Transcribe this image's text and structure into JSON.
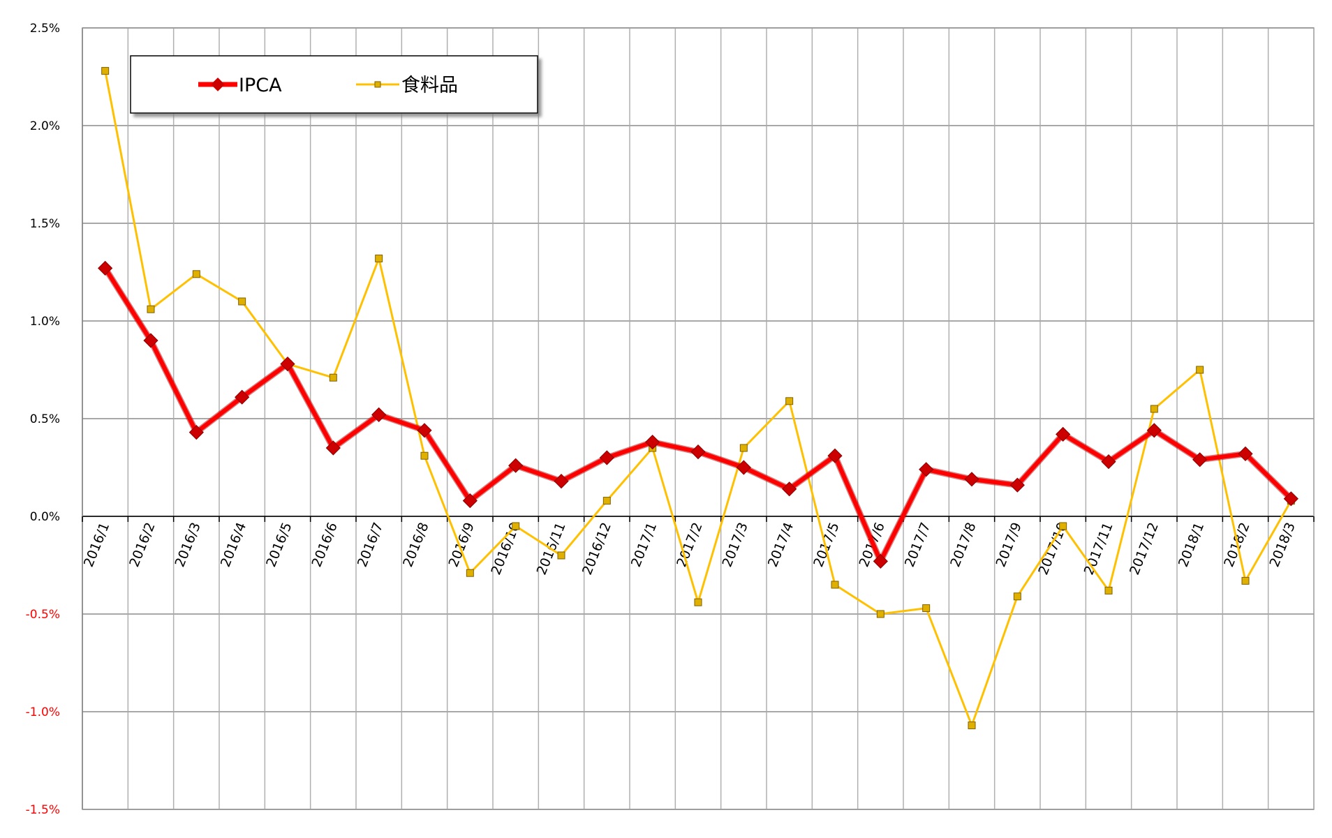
{
  "chart_data": {
    "type": "line",
    "title": "",
    "xlabel": "",
    "ylabel": "",
    "categories": [
      "2016/1",
      "2016/2",
      "2016/3",
      "2016/4",
      "2016/5",
      "2016/6",
      "2016/7",
      "2016/8",
      "2016/9",
      "2016/10",
      "2016/11",
      "2016/12",
      "2017/1",
      "2017/2",
      "2017/3",
      "2017/4",
      "2017/5",
      "2017/6",
      "2017/7",
      "2017/8",
      "2017/9",
      "2017/10",
      "2017/11",
      "2017/12",
      "2018/1",
      "2018/2",
      "2018/3"
    ],
    "ylim": [
      -1.5,
      2.5
    ],
    "yticks": [
      2.5,
      2.0,
      1.5,
      1.0,
      0.5,
      0.0,
      -0.5,
      -1.0,
      -1.5
    ],
    "ytick_labels": [
      "2.5%",
      "2.0%",
      "1.5%",
      "1.0%",
      "0.5%",
      "0.0%",
      "-0.5%",
      "-1.0%",
      "-1.5%"
    ],
    "negative_tick_color": "#ff0000",
    "positive_tick_color": "#000000",
    "grid": true,
    "legend_position": "top-left",
    "series": [
      {
        "name": "IPCA",
        "color": "#ff0000",
        "marker": "diamond",
        "values": [
          1.27,
          0.9,
          0.43,
          0.61,
          0.78,
          0.35,
          0.52,
          0.44,
          0.08,
          0.26,
          0.18,
          0.3,
          0.38,
          0.33,
          0.25,
          0.14,
          0.31,
          -0.23,
          0.24,
          0.19,
          0.16,
          0.42,
          0.28,
          0.44,
          0.29,
          0.32,
          0.09
        ]
      },
      {
        "name": "食料品",
        "color": "#ffc000",
        "marker": "square",
        "values": [
          2.28,
          1.06,
          1.24,
          1.1,
          0.78,
          0.71,
          1.32,
          0.31,
          -0.29,
          -0.05,
          -0.2,
          0.08,
          0.35,
          -0.44,
          0.35,
          0.59,
          -0.35,
          -0.5,
          -0.47,
          -1.07,
          -0.41,
          -0.05,
          -0.38,
          0.55,
          0.75,
          -0.33,
          0.08
        ]
      }
    ]
  }
}
